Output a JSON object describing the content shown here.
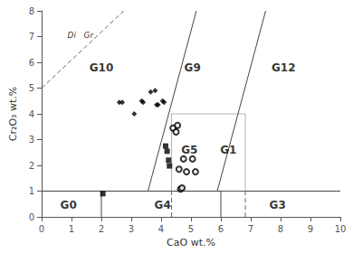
{
  "chart_data": {
    "type": "scatter",
    "xlabel": "CaO wt.%",
    "ylabel": "Cr₂O₃ wt.%",
    "xlim": [
      0,
      10
    ],
    "ylim": [
      0,
      8
    ],
    "xticks": [
      0,
      1,
      2,
      3,
      4,
      5,
      6,
      7,
      8,
      9,
      10
    ],
    "yticks": [
      0,
      1,
      2,
      3,
      4,
      5,
      6,
      7,
      8
    ],
    "grid": false,
    "series": [
      {
        "marker": "diamond",
        "color": "#000000",
        "x": [
          2.6,
          2.7,
          3.1,
          3.35,
          3.4,
          3.65,
          3.8,
          3.85,
          3.9,
          4.05,
          4.1
        ],
        "y": [
          4.45,
          4.45,
          4.0,
          4.5,
          4.45,
          4.85,
          4.9,
          4.35,
          4.35,
          4.5,
          4.45
        ]
      },
      {
        "marker": "square",
        "color": "#000000",
        "x": [
          2.05,
          4.15,
          4.2,
          4.25,
          4.28
        ],
        "y": [
          0.9,
          2.75,
          2.55,
          2.2,
          1.98
        ]
      },
      {
        "marker": "emptyCircle",
        "color": "#000000",
        "x": [
          4.4,
          4.5,
          4.55,
          4.6,
          4.65,
          4.7,
          4.75,
          4.85,
          5.05,
          5.15
        ],
        "y": [
          3.45,
          3.3,
          3.55,
          1.85,
          1.08,
          1.12,
          2.25,
          1.75,
          2.25,
          1.75
        ]
      }
    ],
    "lines": [
      {
        "x": [
          0,
          10
        ],
        "y": [
          1.0,
          1.0
        ],
        "line_style": "solid",
        "color": "#444444"
      },
      {
        "x": [
          2.0,
          2.0
        ],
        "y": [
          0.0,
          1.0
        ],
        "line_style": "solid",
        "color": "#444444"
      },
      {
        "x": [
          6.0,
          6.0
        ],
        "y": [
          0.0,
          1.0
        ],
        "line_style": "solid",
        "color": "#444444"
      },
      {
        "x": [
          3.56,
          5.18
        ],
        "y": [
          1.0,
          8.0
        ],
        "line_style": "solid",
        "color": "#444444"
      },
      {
        "x": [
          5.88,
          7.5
        ],
        "y": [
          1.0,
          8.0
        ],
        "line_style": "solid",
        "color": "#444444"
      },
      {
        "x": [
          0.0,
          2.75
        ],
        "y": [
          5.0,
          8.0
        ],
        "line_style": "dashed",
        "color": "#666666"
      },
      {
        "x": [
          4.35,
          6.82
        ],
        "y": [
          4.0,
          4.0
        ],
        "line_style": "dotted",
        "color": "#666666"
      },
      {
        "x": [
          4.35,
          4.35
        ],
        "y": [
          1.0,
          4.0
        ],
        "line_style": "dotted",
        "color": "#666666"
      },
      {
        "x": [
          4.35,
          4.35
        ],
        "y": [
          0.0,
          1.0
        ],
        "line_style": "dashed",
        "color": "#666666"
      },
      {
        "x": [
          6.82,
          6.82
        ],
        "y": [
          1.0,
          4.0
        ],
        "line_style": "dotted",
        "color": "#666666"
      },
      {
        "x": [
          6.05,
          6.82
        ],
        "y": [
          1.0,
          1.0
        ],
        "line_style": "dotted",
        "color": "#666666"
      },
      {
        "x": [
          6.82,
          6.82
        ],
        "y": [
          0.0,
          1.0
        ],
        "line_style": "dashed",
        "color": "#666666"
      }
    ],
    "region_labels": [
      {
        "text": "G10",
        "x": 2.0,
        "y": 5.8
      },
      {
        "text": "G9",
        "x": 5.05,
        "y": 5.8
      },
      {
        "text": "G12",
        "x": 8.1,
        "y": 5.8
      },
      {
        "text": "G5",
        "x": 4.95,
        "y": 2.6
      },
      {
        "text": "G1",
        "x": 6.25,
        "y": 2.6
      },
      {
        "text": "G0",
        "x": 0.9,
        "y": 0.47
      },
      {
        "text": "G4",
        "x": 4.05,
        "y": 0.47
      },
      {
        "text": "G3",
        "x": 7.9,
        "y": 0.47
      }
    ],
    "annotations": [
      {
        "text": "Di   Gr",
        "x": 1.3,
        "y": 7.05
      }
    ]
  }
}
